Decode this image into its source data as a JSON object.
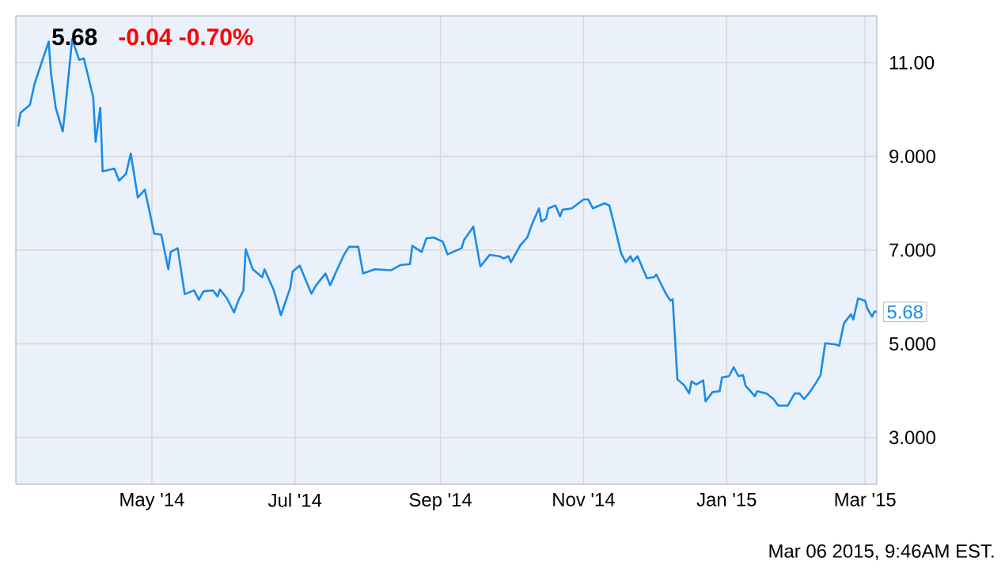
{
  "chart_data": {
    "type": "line",
    "title": "5.68",
    "subtitle": "-0.04  -0.70%",
    "annotations": [
      {
        "text": "5.68",
        "x": "2015-03-06",
        "y": 5.68
      },
      "Mar 06 2015, 9:46AM EST."
    ],
    "color": "#1a8be8",
    "x": [
      "2014-03-05",
      "2014-03-06",
      "2014-03-10",
      "2014-03-12",
      "2014-03-15",
      "2014-03-18",
      "2014-03-19",
      "2014-03-21",
      "2014-03-24",
      "2014-03-25",
      "2014-03-28",
      "2014-03-31",
      "2014-04-02",
      "2014-04-06",
      "2014-04-07",
      "2014-04-09",
      "2014-04-10",
      "2014-04-15",
      "2014-04-17",
      "2014-04-20",
      "2014-04-22",
      "2014-04-25",
      "2014-04-28",
      "2014-05-02",
      "2014-05-05",
      "2014-05-08",
      "2014-05-09",
      "2014-05-12",
      "2014-05-15",
      "2014-05-19",
      "2014-05-21",
      "2014-05-23",
      "2014-05-27",
      "2014-05-29",
      "2014-05-30",
      "2014-06-02",
      "2014-06-05",
      "2014-06-07",
      "2014-06-09",
      "2014-06-10",
      "2014-06-13",
      "2014-06-17",
      "2014-06-18",
      "2014-06-22",
      "2014-06-25",
      "2014-06-29",
      "2014-06-30",
      "2014-07-03",
      "2014-07-08",
      "2014-07-10",
      "2014-07-14",
      "2014-07-16",
      "2014-07-19",
      "2014-07-22",
      "2014-07-24",
      "2014-07-28",
      "2014-07-30",
      "2014-08-04",
      "2014-08-11",
      "2014-08-15",
      "2014-08-19",
      "2014-08-20",
      "2014-08-24",
      "2014-08-26",
      "2014-08-29",
      "2014-09-02",
      "2014-09-04",
      "2014-09-10",
      "2014-09-11",
      "2014-09-15",
      "2014-09-18",
      "2014-09-22",
      "2014-09-26",
      "2014-09-28",
      "2014-09-30",
      "2014-10-01",
      "2014-10-05",
      "2014-10-08",
      "2014-10-10",
      "2014-10-13",
      "2014-10-14",
      "2014-10-16",
      "2014-10-17",
      "2014-10-20",
      "2014-10-22",
      "2014-10-23",
      "2014-10-27",
      "2014-11-01",
      "2014-11-03",
      "2014-11-05",
      "2014-11-10",
      "2014-11-12",
      "2014-11-14",
      "2014-11-17",
      "2014-11-19",
      "2014-11-21",
      "2014-11-22",
      "2014-11-24",
      "2014-11-28",
      "2014-12-01",
      "2014-12-02",
      "2014-12-06",
      "2014-12-08",
      "2014-12-09",
      "2014-12-11",
      "2014-12-14",
      "2014-12-16",
      "2014-12-17",
      "2014-12-19",
      "2014-12-22",
      "2014-12-23",
      "2014-12-26",
      "2014-12-29",
      "2014-12-30",
      "2015-01-02",
      "2015-01-04",
      "2015-01-06",
      "2015-01-08",
      "2015-01-09",
      "2015-01-13",
      "2015-01-14",
      "2015-01-18",
      "2015-01-21",
      "2015-01-23",
      "2015-01-27",
      "2015-01-30",
      "2015-02-01",
      "2015-02-03",
      "2015-02-05",
      "2015-02-08",
      "2015-02-10",
      "2015-02-12",
      "2015-02-16",
      "2015-02-18",
      "2015-02-20",
      "2015-02-23",
      "2015-02-24",
      "2015-02-26",
      "2015-03-01",
      "2015-03-02",
      "2015-03-04",
      "2015-03-05",
      "2015-03-06"
    ],
    "values": [
      9.64,
      9.93,
      10.1,
      10.55,
      11.0,
      11.45,
      10.77,
      10.04,
      9.53,
      9.98,
      11.5,
      11.06,
      11.09,
      10.26,
      9.31,
      10.04,
      8.68,
      8.74,
      8.48,
      8.63,
      9.06,
      8.12,
      8.29,
      7.35,
      7.33,
      6.59,
      6.96,
      7.04,
      6.06,
      6.14,
      5.94,
      6.12,
      6.14,
      6.01,
      6.16,
      5.97,
      5.67,
      5.94,
      6.14,
      7.02,
      6.59,
      6.42,
      6.59,
      6.14,
      5.61,
      6.2,
      6.54,
      6.67,
      6.07,
      6.25,
      6.5,
      6.25,
      6.59,
      6.91,
      7.07,
      7.07,
      6.5,
      6.59,
      6.57,
      6.68,
      6.7,
      7.09,
      6.96,
      7.25,
      7.27,
      7.18,
      6.91,
      7.04,
      7.21,
      7.5,
      6.65,
      6.9,
      6.87,
      6.82,
      6.87,
      6.74,
      7.1,
      7.27,
      7.55,
      7.89,
      7.61,
      7.67,
      7.89,
      7.95,
      7.72,
      7.86,
      7.89,
      8.08,
      8.08,
      7.89,
      8.0,
      7.95,
      7.55,
      6.93,
      6.74,
      6.87,
      6.76,
      6.87,
      6.4,
      6.42,
      6.48,
      6.08,
      5.92,
      5.95,
      4.24,
      4.11,
      3.94,
      4.2,
      4.13,
      4.22,
      3.77,
      3.97,
      3.99,
      4.28,
      4.31,
      4.5,
      4.31,
      4.33,
      4.11,
      3.88,
      3.99,
      3.94,
      3.82,
      3.68,
      3.68,
      3.94,
      3.94,
      3.82,
      3.94,
      4.16,
      4.33,
      5.01,
      4.99,
      4.96,
      5.44,
      5.63,
      5.52,
      5.97,
      5.92,
      5.75,
      5.58,
      5.69,
      5.68
    ],
    "xlim": [
      "2014-03-04",
      "2015-03-06"
    ],
    "ylim": [
      2,
      12
    ],
    "xticks": [
      {
        "value": "2014-05-01",
        "label": "May '14"
      },
      {
        "value": "2014-07-01",
        "label": "Jul '14"
      },
      {
        "value": "2014-09-01",
        "label": "Sep '14"
      },
      {
        "value": "2014-11-01",
        "label": "Nov '14"
      },
      {
        "value": "2015-01-01",
        "label": "Jan '15"
      },
      {
        "value": "2015-03-01",
        "label": "Mar '15"
      }
    ],
    "yticks": [
      {
        "value": 3,
        "label": "3.000"
      },
      {
        "value": 5,
        "label": "5.000"
      },
      {
        "value": 7,
        "label": "7.000"
      },
      {
        "value": 9,
        "label": "9.000"
      },
      {
        "value": 11,
        "label": "11.00"
      }
    ],
    "grid": true
  }
}
